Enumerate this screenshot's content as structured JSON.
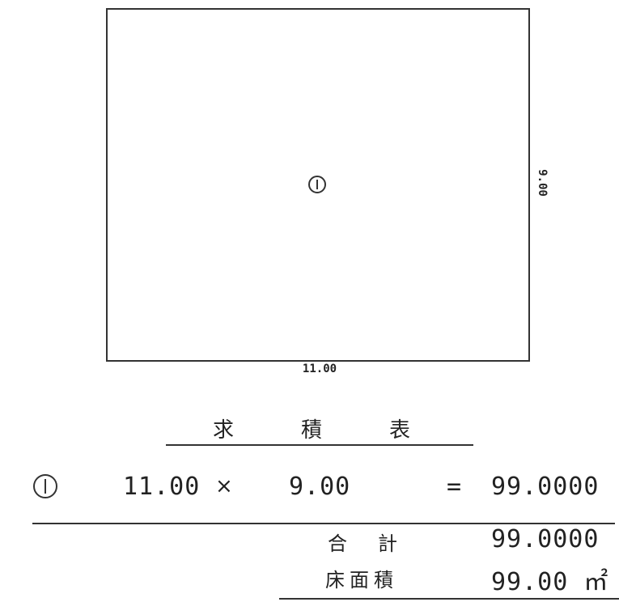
{
  "plan": {
    "marker": "①",
    "width_label": "11.00",
    "height_label": "9.00"
  },
  "table": {
    "title_chars": [
      "求",
      "積",
      "表"
    ],
    "rows": [
      {
        "marker": "①",
        "a": "11.00",
        "op": "×",
        "b": "9.00",
        "eq": "=",
        "result": "99.0000"
      }
    ],
    "total": {
      "label": "合計",
      "value": "99.0000"
    },
    "floor_area": {
      "label": "床面積",
      "value": "99.00 ㎡"
    }
  }
}
